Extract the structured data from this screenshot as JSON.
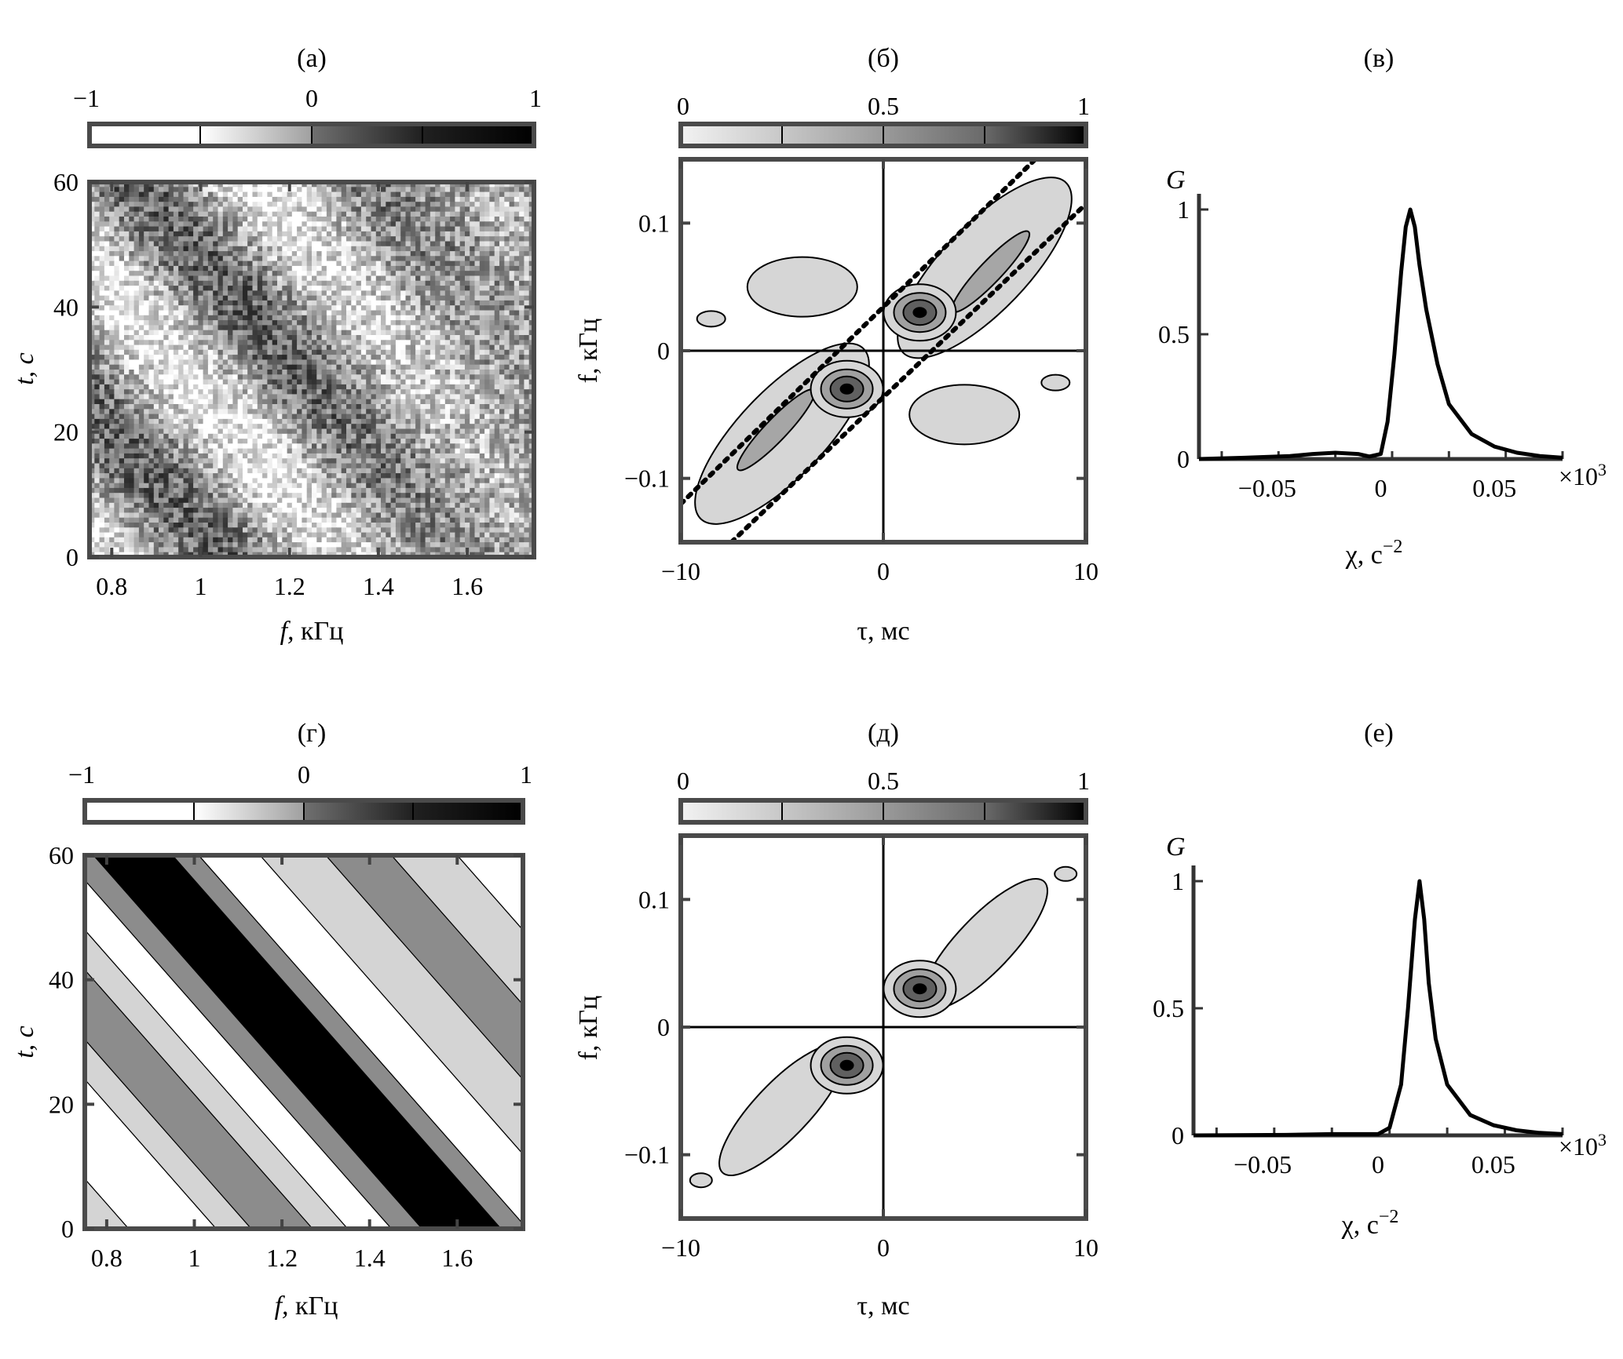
{
  "chart_data": [
    {
      "id": "a",
      "panel_label": "(а)",
      "type": "heatmap",
      "xlabel_italic": "f,",
      "xlabel_rest": " кГц",
      "ylabel": "t, c",
      "xlim": [
        0.75,
        1.75
      ],
      "ylim": [
        0,
        60
      ],
      "xticks": [
        "0.8",
        "1",
        "1.2",
        "1.4",
        "1.6"
      ],
      "xtick_values": [
        0.8,
        1.0,
        1.2,
        1.4,
        1.6
      ],
      "yticks": [
        "0",
        "20",
        "40",
        "60"
      ],
      "ytick_values": [
        0,
        20,
        40,
        60
      ],
      "colorbar": {
        "ticks": [
          "−1",
          "0",
          "1"
        ],
        "tick_values": [
          -1,
          0,
          1
        ],
        "range": [
          -1,
          1
        ]
      },
      "stripe_slope_khz_per_s": -0.0125,
      "noisy": true
    },
    {
      "id": "b",
      "panel_label": "(б)",
      "type": "contour",
      "xlabel_italic": "",
      "xlabel_rest": "τ, мс",
      "ylabel": "f, кГц",
      "xlim": [
        -10,
        10
      ],
      "ylim": [
        -0.15,
        0.15
      ],
      "xticks": [
        "−10",
        "0",
        "10"
      ],
      "xtick_values": [
        -10,
        0,
        10
      ],
      "yticks": [
        "−0.1",
        "0",
        "0.1"
      ],
      "ytick_values": [
        -0.1,
        0,
        0.1
      ],
      "colorbar": {
        "ticks": [
          "0",
          "0.5",
          "1"
        ],
        "tick_values": [
          0,
          0.5,
          1
        ],
        "range": [
          0,
          1
        ]
      },
      "peaks_ms_khz": [
        [
          1.8,
          0.03
        ],
        [
          -1.8,
          -0.03
        ]
      ],
      "dotted_lines": [
        [
          [
            -10,
            -0.12
          ],
          [
            7.5,
            0.15
          ]
        ],
        [
          [
            -7.5,
            -0.15
          ],
          [
            10,
            0.115
          ]
        ]
      ]
    },
    {
      "id": "c",
      "panel_label": "(в)",
      "type": "line",
      "xlabel": "χ, c",
      "xlabel_sup": "−2",
      "ylabel": "G",
      "xlim": [
        -0.08,
        0.08
      ],
      "ylim": [
        0,
        1
      ],
      "xticks": [
        "−0.05",
        "0",
        "0.05"
      ],
      "xtick_values": [
        -0.05,
        0,
        0.05
      ],
      "yticks": [
        "0",
        "0.5",
        "1"
      ],
      "ytick_values": [
        0,
        0.5,
        1
      ],
      "multiplier": "×10",
      "multiplier_sup": "3",
      "x": [
        -0.08,
        -0.06,
        -0.04,
        -0.03,
        -0.02,
        -0.01,
        -0.005,
        0,
        0.003,
        0.006,
        0.009,
        0.011,
        0.013,
        0.015,
        0.017,
        0.02,
        0.025,
        0.03,
        0.04,
        0.05,
        0.06,
        0.07,
        0.08
      ],
      "y": [
        0,
        0.005,
        0.012,
        0.02,
        0.025,
        0.02,
        0.01,
        0.02,
        0.15,
        0.42,
        0.75,
        0.93,
        1.0,
        0.93,
        0.78,
        0.6,
        0.38,
        0.22,
        0.1,
        0.05,
        0.025,
        0.012,
        0.005
      ]
    },
    {
      "id": "d",
      "panel_label": "(г)",
      "type": "heatmap",
      "xlabel_italic": "f,",
      "xlabel_rest": " кГц",
      "ylabel": "t, c",
      "xlim": [
        0.75,
        1.75
      ],
      "ylim": [
        0,
        60
      ],
      "xticks": [
        "0.8",
        "1",
        "1.2",
        "1.4",
        "1.6"
      ],
      "xtick_values": [
        0.8,
        1.0,
        1.2,
        1.4,
        1.6
      ],
      "yticks": [
        "0",
        "20",
        "40",
        "60"
      ],
      "ytick_values": [
        0,
        20,
        40,
        60
      ],
      "colorbar": {
        "ticks": [
          "−1",
          "0",
          "1"
        ],
        "tick_values": [
          -1,
          0,
          1
        ],
        "range": [
          -1,
          1
        ]
      },
      "stripe_slope_khz_per_s": -0.0125,
      "noisy": false
    },
    {
      "id": "e",
      "panel_label": "(д)",
      "type": "contour",
      "xlabel_italic": "",
      "xlabel_rest": "τ, мс",
      "ylabel": "f, кГц",
      "xlim": [
        -10,
        10
      ],
      "ylim": [
        -0.15,
        0.15
      ],
      "xticks": [
        "−10",
        "0",
        "10"
      ],
      "xtick_values": [
        -10,
        0,
        10
      ],
      "yticks": [
        "−0.1",
        "0",
        "0.1"
      ],
      "ytick_values": [
        -0.1,
        0,
        0.1
      ],
      "colorbar": {
        "ticks": [
          "0",
          "0.5",
          "1"
        ],
        "tick_values": [
          0,
          0.5,
          1
        ],
        "range": [
          0,
          1
        ]
      },
      "peaks_ms_khz": [
        [
          1.8,
          0.03
        ],
        [
          -1.8,
          -0.03
        ]
      ],
      "dotted_lines": []
    },
    {
      "id": "f",
      "panel_label": "(е)",
      "type": "line",
      "xlabel": "χ, c",
      "xlabel_sup": "−2",
      "ylabel": "G",
      "xlim": [
        -0.08,
        0.08
      ],
      "ylim": [
        0,
        1
      ],
      "xticks": [
        "−0.05",
        "0",
        "0.05"
      ],
      "xtick_values": [
        -0.05,
        0,
        0.05
      ],
      "yticks": [
        "0",
        "0.5",
        "1"
      ],
      "ytick_values": [
        0,
        0.5,
        1
      ],
      "multiplier": "×10",
      "multiplier_sup": "3",
      "x": [
        -0.08,
        -0.04,
        -0.02,
        0,
        0.005,
        0.01,
        0.013,
        0.016,
        0.018,
        0.02,
        0.022,
        0.025,
        0.03,
        0.04,
        0.05,
        0.06,
        0.07,
        0.08
      ],
      "y": [
        0,
        0.002,
        0.005,
        0.005,
        0.03,
        0.2,
        0.5,
        0.85,
        1.0,
        0.85,
        0.6,
        0.38,
        0.2,
        0.08,
        0.04,
        0.02,
        0.01,
        0.005
      ]
    }
  ]
}
